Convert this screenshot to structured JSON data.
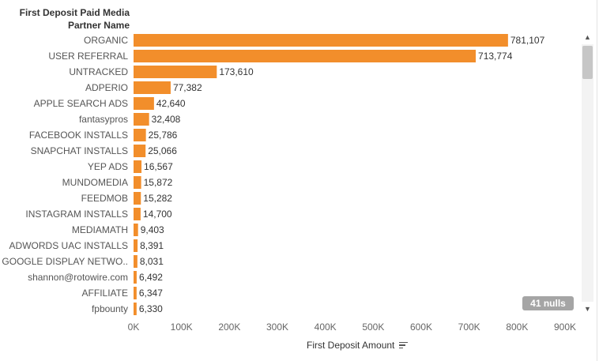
{
  "header": {
    "line1": "First Deposit Paid Media",
    "line2": "Partner Name"
  },
  "chart_data": {
    "type": "bar",
    "orientation": "horizontal",
    "categories": [
      "ORGANIC",
      "USER REFERRAL",
      "UNTRACKED",
      "ADPERIO",
      "APPLE SEARCH ADS",
      "fantasypros",
      "FACEBOOK INSTALLS",
      "SNAPCHAT INSTALLS",
      "YEP ADS",
      "MUNDOMEDIA",
      "FEEDMOB",
      "INSTAGRAM INSTALLS",
      "MEDIAMATH",
      "ADWORDS UAC INSTALLS",
      "GOOGLE DISPLAY NETWO..",
      "shannon@rotowire.com",
      "AFFILIATE",
      "fpbounty"
    ],
    "values": [
      781107,
      713774,
      173610,
      77382,
      42640,
      32408,
      25786,
      25066,
      16567,
      15872,
      15282,
      14700,
      9403,
      8391,
      8031,
      6492,
      6347,
      6330
    ],
    "value_labels": [
      "781,107",
      "713,774",
      "173,610",
      "77,382",
      "42,640",
      "32,408",
      "25,786",
      "25,066",
      "16,567",
      "15,872",
      "15,282",
      "14,700",
      "9,403",
      "8,391",
      "8,031",
      "6,492",
      "6,347",
      "6,330"
    ],
    "xlabel": "First Deposit Amount",
    "xlim": [
      0,
      900000
    ],
    "xticks": [
      0,
      100000,
      200000,
      300000,
      400000,
      500000,
      600000,
      700000,
      800000,
      900000
    ],
    "xtick_labels": [
      "0K",
      "100K",
      "200K",
      "300K",
      "400K",
      "500K",
      "600K",
      "700K",
      "800K",
      "900K"
    ],
    "bar_color": "#F28E2B",
    "grid": false
  },
  "nulls_indicator": "41 nulls",
  "scrollbar": {
    "up_icon": "▲",
    "down_icon": "▼"
  }
}
